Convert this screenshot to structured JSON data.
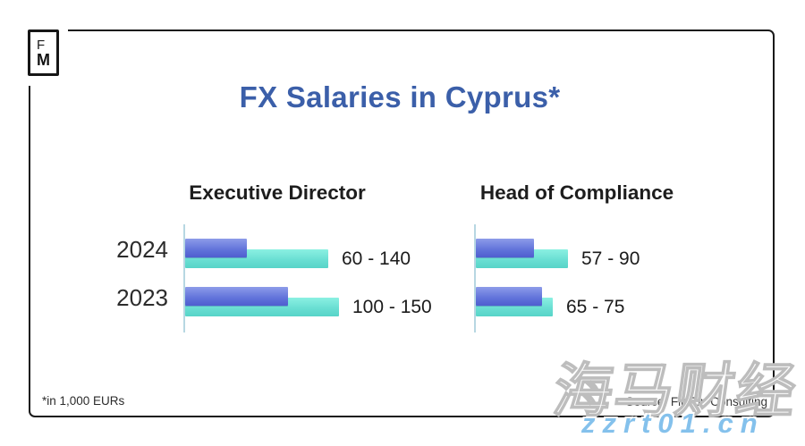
{
  "logo": {
    "top": "F",
    "bottom": "M"
  },
  "title": "FX Salaries in Cyprus*",
  "footnote": "*in 1,000 EURs",
  "source": "Source: FinTop Consulting",
  "watermark": {
    "cn_text": "海马财经",
    "url_text": "zzrt01.cn"
  },
  "colors": {
    "title_blue": "#3b5fa9",
    "bar_min_top": "#8d9ce9",
    "bar_min_bottom": "#4f5ecf",
    "bar_max_top": "#8bf0e2",
    "bar_max_bottom": "#57d4c8",
    "axis": "#b7d7e2",
    "frame": "#1a1a1a",
    "watermark_url": "#84c1ec"
  },
  "chart_data": [
    {
      "type": "bar",
      "orientation": "horizontal",
      "title": "Executive Director",
      "categories": [
        "2024",
        "2023"
      ],
      "series": [
        {
          "name": "min",
          "values": [
            60,
            100
          ]
        },
        {
          "name": "max",
          "values": [
            140,
            150
          ]
        }
      ],
      "labels": [
        "60 - 140",
        "100 - 150"
      ],
      "unit": "1,000 EURs",
      "xlim": [
        0,
        150
      ],
      "grid": false,
      "legend": "none",
      "show_category_labels": true
    },
    {
      "type": "bar",
      "orientation": "horizontal",
      "title": "Head of Compliance",
      "categories": [
        "2024",
        "2023"
      ],
      "series": [
        {
          "name": "min",
          "values": [
            57,
            65
          ]
        },
        {
          "name": "max",
          "values": [
            90,
            75
          ]
        }
      ],
      "labels": [
        "57 - 90",
        "65 - 75"
      ],
      "unit": "1,000 EURs",
      "xlim": [
        0,
        150
      ],
      "grid": false,
      "legend": "none",
      "show_category_labels": false
    }
  ]
}
